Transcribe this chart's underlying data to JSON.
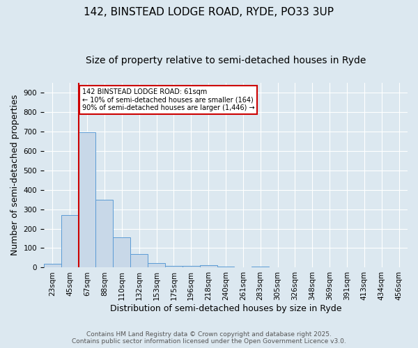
{
  "title": "142, BINSTEAD LODGE ROAD, RYDE, PO33 3UP",
  "subtitle": "Size of property relative to semi-detached houses in Ryde",
  "xlabel": "Distribution of semi-detached houses by size in Ryde",
  "ylabel": "Number of semi-detached properties",
  "categories": [
    "23sqm",
    "45sqm",
    "67sqm",
    "88sqm",
    "110sqm",
    "132sqm",
    "153sqm",
    "175sqm",
    "196sqm",
    "218sqm",
    "240sqm",
    "261sqm",
    "283sqm",
    "305sqm",
    "326sqm",
    "348sqm",
    "369sqm",
    "391sqm",
    "413sqm",
    "434sqm",
    "456sqm"
  ],
  "values": [
    20,
    270,
    697,
    350,
    155,
    68,
    22,
    10,
    10,
    13,
    6,
    0,
    7,
    0,
    0,
    0,
    0,
    0,
    0,
    0,
    0
  ],
  "bar_color": "#c8d8e8",
  "bar_edge_color": "#5b9bd5",
  "red_line_index": 2,
  "red_line_color": "#cc0000",
  "ylim": [
    0,
    950
  ],
  "yticks": [
    0,
    100,
    200,
    300,
    400,
    500,
    600,
    700,
    800,
    900
  ],
  "annotation_text": "142 BINSTEAD LODGE ROAD: 61sqm\n← 10% of semi-detached houses are smaller (164)\n90% of semi-detached houses are larger (1,446) →",
  "annotation_box_color": "#ffffff",
  "annotation_box_edge": "#cc0000",
  "footer_line1": "Contains HM Land Registry data © Crown copyright and database right 2025.",
  "footer_line2": "Contains public sector information licensed under the Open Government Licence v3.0.",
  "bg_color": "#dce8f0",
  "plot_bg_color": "#dce8f0",
  "title_fontsize": 11,
  "subtitle_fontsize": 10,
  "tick_fontsize": 7.5,
  "ylabel_fontsize": 9,
  "xlabel_fontsize": 9
}
